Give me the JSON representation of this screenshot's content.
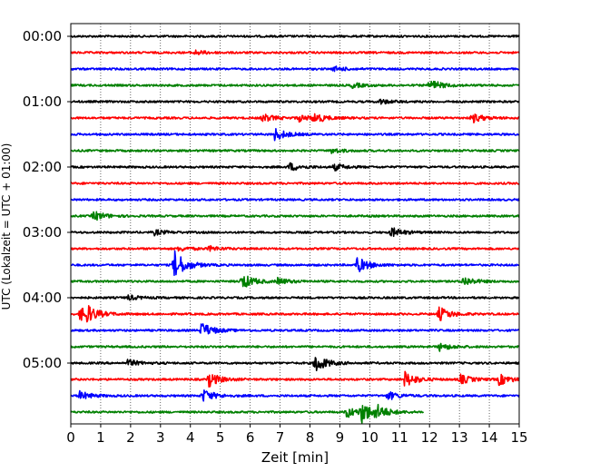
{
  "chart_data": {
    "type": "line",
    "title": "",
    "xlabel": "Zeit  [min]",
    "ylabel": "UTC (Lokalzeit = UTC + 01:00)",
    "xlim": [
      0,
      15
    ],
    "x_ticks": [
      0,
      1,
      2,
      3,
      4,
      5,
      6,
      7,
      8,
      9,
      10,
      11,
      12,
      13,
      14,
      15
    ],
    "grid": "vertical dotted",
    "line_interval_min": 15,
    "y_tick_labels": [
      "00:00",
      "01:00",
      "02:00",
      "03:00",
      "04:00",
      "05:00"
    ],
    "color_cycle": [
      "#000000",
      "#ff0000",
      "#0000ff",
      "#008000"
    ],
    "series": [
      {
        "start": "00:00",
        "color": "#000000",
        "events": []
      },
      {
        "start": "00:15",
        "color": "#ff0000",
        "events": [
          {
            "t": 4.1,
            "amp": 0.3
          }
        ]
      },
      {
        "start": "00:30",
        "color": "#0000ff",
        "events": [
          {
            "t": 8.8,
            "amp": 0.3
          }
        ]
      },
      {
        "start": "00:45",
        "color": "#008000",
        "events": [
          {
            "t": 9.4,
            "amp": 0.3
          },
          {
            "t": 12.0,
            "amp": 0.7
          }
        ]
      },
      {
        "start": "01:00",
        "color": "#000000",
        "events": [
          {
            "t": 10.3,
            "amp": 0.3
          }
        ]
      },
      {
        "start": "01:15",
        "color": "#ff0000",
        "events": [
          {
            "t": 6.4,
            "amp": 0.5
          },
          {
            "t": 7.6,
            "amp": 0.4
          },
          {
            "t": 8.1,
            "amp": 0.6
          },
          {
            "t": 13.4,
            "amp": 0.6
          }
        ]
      },
      {
        "start": "01:30",
        "color": "#0000ff",
        "events": [
          {
            "t": 6.8,
            "amp": 0.8
          }
        ]
      },
      {
        "start": "01:45",
        "color": "#008000",
        "events": [
          {
            "t": 8.7,
            "amp": 0.3
          }
        ]
      },
      {
        "start": "02:00",
        "color": "#000000",
        "events": [
          {
            "t": 7.3,
            "amp": 0.5
          },
          {
            "t": 8.8,
            "amp": 0.4
          }
        ]
      },
      {
        "start": "02:15",
        "color": "#ff0000",
        "events": []
      },
      {
        "start": "02:30",
        "color": "#0000ff",
        "events": []
      },
      {
        "start": "02:45",
        "color": "#008000",
        "events": [
          {
            "t": 0.75,
            "amp": 0.6
          }
        ]
      },
      {
        "start": "03:00",
        "color": "#000000",
        "events": [
          {
            "t": 2.8,
            "amp": 0.3
          },
          {
            "t": 10.7,
            "amp": 0.6
          }
        ]
      },
      {
        "start": "03:15",
        "color": "#ff0000",
        "events": [
          {
            "t": 3.6,
            "amp": 0.3
          },
          {
            "t": 4.6,
            "amp": 0.3
          }
        ]
      },
      {
        "start": "03:30",
        "color": "#0000ff",
        "events": [
          {
            "t": 3.45,
            "amp": 1.8
          },
          {
            "t": 9.55,
            "amp": 1.0
          }
        ]
      },
      {
        "start": "03:45",
        "color": "#008000",
        "events": [
          {
            "t": 5.7,
            "amp": 1.0
          },
          {
            "t": 6.9,
            "amp": 0.4
          },
          {
            "t": 13.1,
            "amp": 0.6
          }
        ]
      },
      {
        "start": "04:00",
        "color": "#000000",
        "events": [
          {
            "t": 1.9,
            "amp": 0.3
          }
        ]
      },
      {
        "start": "04:15",
        "color": "#ff0000",
        "events": [
          {
            "t": 0.3,
            "amp": 0.8
          },
          {
            "t": 0.45,
            "amp": 0.9
          },
          {
            "t": 12.3,
            "amp": 0.9
          }
        ]
      },
      {
        "start": "04:30",
        "color": "#0000ff",
        "events": [
          {
            "t": 4.35,
            "amp": 1.0
          }
        ]
      },
      {
        "start": "04:45",
        "color": "#008000",
        "events": [
          {
            "t": 12.3,
            "amp": 0.5
          }
        ]
      },
      {
        "start": "05:00",
        "color": "#000000",
        "events": [
          {
            "t": 1.9,
            "amp": 0.4
          },
          {
            "t": 8.15,
            "amp": 1.2
          }
        ]
      },
      {
        "start": "05:15",
        "color": "#ff0000",
        "events": [
          {
            "t": 4.6,
            "amp": 0.9
          },
          {
            "t": 11.15,
            "amp": 1.0
          },
          {
            "t": 13.0,
            "amp": 0.6
          },
          {
            "t": 14.3,
            "amp": 0.7
          }
        ]
      },
      {
        "start": "05:30",
        "color": "#0000ff",
        "events": [
          {
            "t": 0.3,
            "amp": 0.5
          },
          {
            "t": 4.4,
            "amp": 0.8
          },
          {
            "t": 10.6,
            "amp": 0.5
          }
        ]
      },
      {
        "start": "05:45",
        "color": "#008000",
        "end_min": 11.8,
        "events": [
          {
            "t": 9.7,
            "amp": 1.3
          },
          {
            "t": 9.2,
            "amp": 0.7
          },
          {
            "t": 10.2,
            "amp": 0.7
          }
        ]
      }
    ]
  }
}
